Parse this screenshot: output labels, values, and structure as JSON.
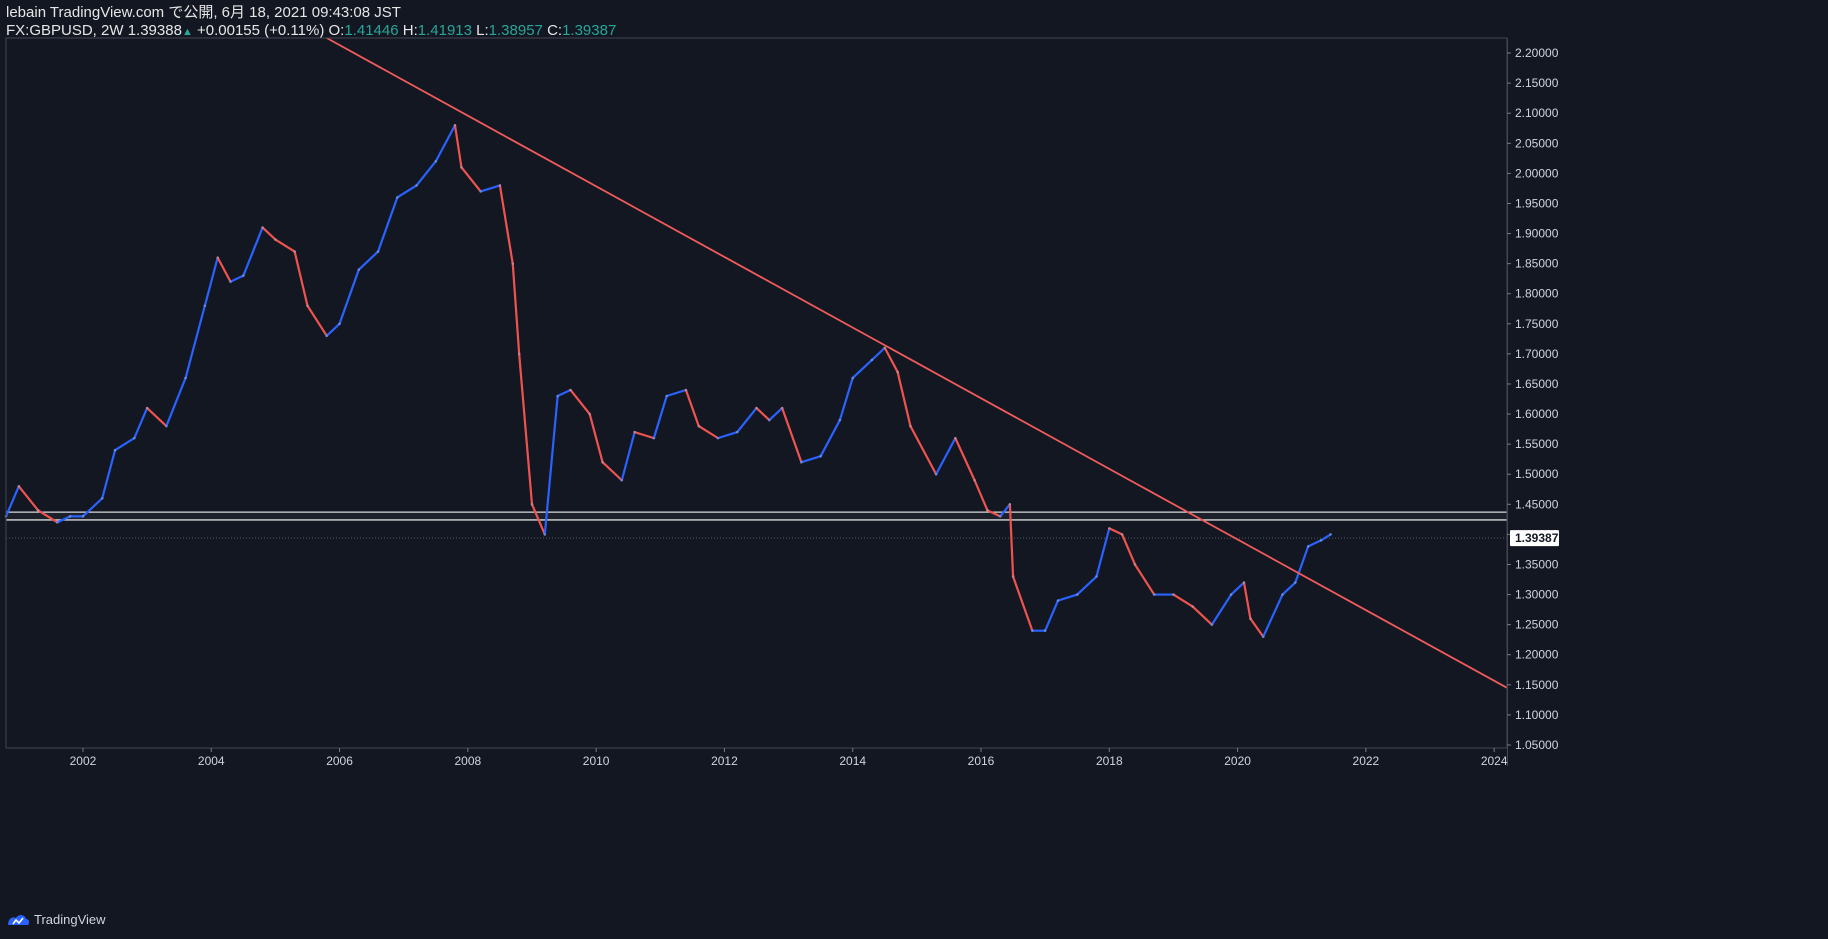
{
  "header": {
    "line1": "lebain TradingView.com で公開, 6月 18, 2021 09:43:08 JST",
    "symbol": "FX:GBPUSD, 2W",
    "last": "1.39388",
    "change": "+0.00155 (+0.11%)",
    "o_label": "O:",
    "o": "1.41446",
    "h_label": "H:",
    "h": "1.41913",
    "l_label": "L:",
    "l": "1.38957",
    "c_label": "C:",
    "c": "1.39387"
  },
  "footer": {
    "brand": "TradingView"
  },
  "colors": {
    "background": "#131722",
    "up": "#2962ff",
    "down": "#ef5350",
    "trendline": "#f15b5b",
    "zone": "#d9d9d9",
    "price_label_bg": "#ffffff",
    "price_label_fg": "#131722"
  },
  "chart_data": {
    "type": "line",
    "symbol": "FX:GBPUSD",
    "interval": "2W",
    "xlim": [
      2000.8,
      2024.2
    ],
    "ylim": [
      1.045,
      2.225
    ],
    "y_ticks": [
      "2.20000",
      "2.15000",
      "2.10000",
      "2.05000",
      "2.00000",
      "1.95000",
      "1.90000",
      "1.85000",
      "1.80000",
      "1.75000",
      "1.70000",
      "1.65000",
      "1.60000",
      "1.55000",
      "1.50000",
      "1.45000",
      "1.40000",
      "1.35000",
      "1.30000",
      "1.25000",
      "1.20000",
      "1.15000",
      "1.10000",
      "1.05000"
    ],
    "x_ticks": [
      "2002",
      "2004",
      "2006",
      "2008",
      "2010",
      "2012",
      "2014",
      "2016",
      "2018",
      "2020",
      "2022",
      "2024"
    ],
    "last_price_label": "1.39387",
    "last_price": 1.39387,
    "series": [
      {
        "type": "price",
        "x": [
          2000.8,
          2001.0,
          2001.3,
          2001.6,
          2001.8,
          2002.0,
          2002.3,
          2002.5,
          2002.8,
          2003.0,
          2003.3,
          2003.6,
          2003.9,
          2004.1,
          2004.3,
          2004.5,
          2004.8,
          2005.0,
          2005.3,
          2005.5,
          2005.8,
          2006.0,
          2006.3,
          2006.6,
          2006.9,
          2007.2,
          2007.5,
          2007.8,
          2007.9,
          2008.2,
          2008.5,
          2008.7,
          2008.8,
          2009.0,
          2009.2,
          2009.4,
          2009.6,
          2009.9,
          2010.1,
          2010.4,
          2010.6,
          2010.9,
          2011.1,
          2011.4,
          2011.6,
          2011.9,
          2012.2,
          2012.5,
          2012.7,
          2012.9,
          2013.2,
          2013.5,
          2013.8,
          2014.0,
          2014.3,
          2014.5,
          2014.7,
          2014.9,
          2015.3,
          2015.6,
          2015.9,
          2016.1,
          2016.3,
          2016.45,
          2016.5,
          2016.8,
          2017.0,
          2017.2,
          2017.5,
          2017.8,
          2018.0,
          2018.2,
          2018.4,
          2018.7,
          2019.0,
          2019.3,
          2019.6,
          2019.9,
          2020.1,
          2020.2,
          2020.4,
          2020.7,
          2020.9,
          2021.1,
          2021.3,
          2021.45
        ],
        "values": [
          1.43,
          1.48,
          1.44,
          1.42,
          1.43,
          1.43,
          1.46,
          1.54,
          1.56,
          1.61,
          1.58,
          1.66,
          1.78,
          1.86,
          1.82,
          1.83,
          1.91,
          1.89,
          1.87,
          1.78,
          1.73,
          1.75,
          1.84,
          1.87,
          1.96,
          1.98,
          2.02,
          2.08,
          2.01,
          1.97,
          1.98,
          1.85,
          1.7,
          1.45,
          1.4,
          1.63,
          1.64,
          1.6,
          1.52,
          1.49,
          1.57,
          1.56,
          1.63,
          1.64,
          1.58,
          1.56,
          1.57,
          1.61,
          1.59,
          1.61,
          1.52,
          1.53,
          1.59,
          1.66,
          1.69,
          1.71,
          1.67,
          1.58,
          1.5,
          1.56,
          1.49,
          1.44,
          1.43,
          1.45,
          1.33,
          1.24,
          1.24,
          1.29,
          1.3,
          1.33,
          1.41,
          1.4,
          1.35,
          1.3,
          1.3,
          1.28,
          1.25,
          1.3,
          1.32,
          1.26,
          1.23,
          1.3,
          1.32,
          1.38,
          1.39,
          1.4
        ]
      }
    ],
    "trendline": {
      "x": [
        2005.8,
        2024.2
      ],
      "y": [
        2.225,
        1.145
      ]
    },
    "zone": {
      "upper": 1.437,
      "lower": 1.424
    }
  }
}
